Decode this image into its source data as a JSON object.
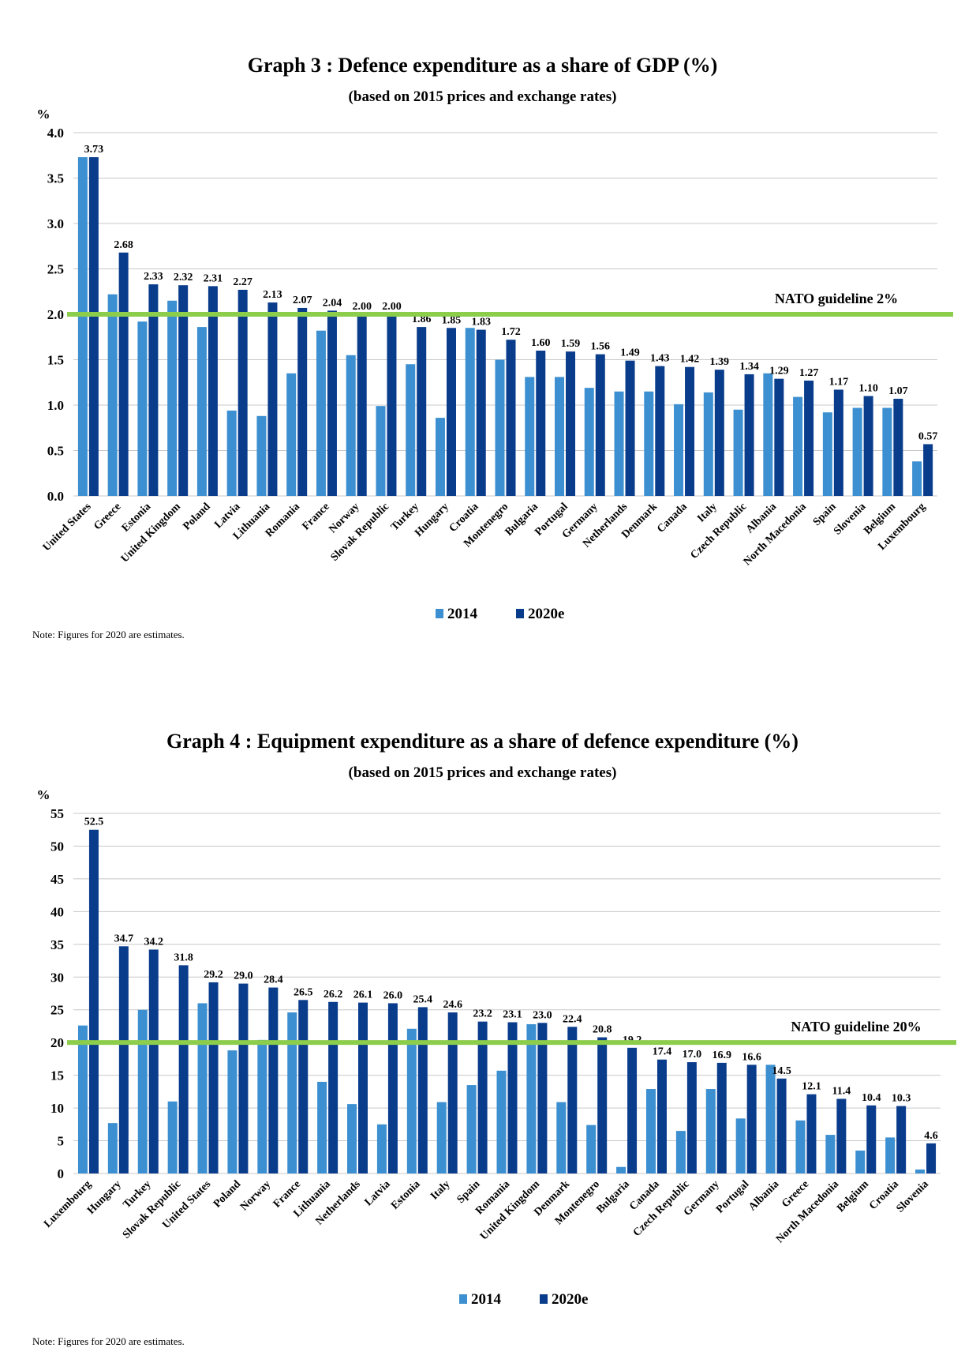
{
  "charts": [
    {
      "title": "Graph 3 : Defence expenditure as a share of GDP (%)",
      "subtitle": "(based on 2015 prices and exchange rates)",
      "note": "Note: Figures for 2020 are estimates.",
      "guideline_label": "NATO guideline 2%",
      "colors": {
        "2014": "#3c8fd0",
        "2020e": "#0a3c8c",
        "guideline": "#8ccd4b"
      }
    },
    {
      "title": "Graph 4 : Equipment expenditure as a share of defence expenditure (%)",
      "subtitle": "(based on 2015 prices and exchange rates)",
      "note": "Note: Figures for 2020 are estimates.",
      "guideline_label": "NATO guideline 20%",
      "colors": {
        "2014": "#3c8fd0",
        "2020e": "#0a3c8c",
        "guideline": "#8ccd4b"
      }
    }
  ],
  "chart_data": [
    {
      "type": "bar",
      "ylabel": "%",
      "ylim": [
        0,
        4.0
      ],
      "yticks": [
        "0.0",
        "0.5",
        "1.0",
        "1.5",
        "2.0",
        "2.5",
        "3.0",
        "3.5",
        "4.0"
      ],
      "grid": true,
      "legend_position": "bottom",
      "guideline": 2.0,
      "categories": [
        "United States",
        "Greece",
        "Estonia",
        "United Kingdom",
        "Poland",
        "Latvia",
        "Lithuania",
        "Romania",
        "France",
        "Norway",
        "Slovak Republic",
        "Turkey",
        "Hungary",
        "Croatia",
        "Montenegro",
        "Bulgaria",
        "Portugal",
        "Germany",
        "Netherlands",
        "Denmark",
        "Canada",
        "Italy",
        "Czech Republic",
        "Albania",
        "North Macedonia",
        "Spain",
        "Slovenia",
        "Belgium",
        "Luxembourg"
      ],
      "series": [
        {
          "name": "2014",
          "values": [
            3.73,
            2.22,
            1.92,
            2.15,
            1.86,
            0.94,
            0.88,
            1.35,
            1.82,
            1.55,
            0.99,
            1.45,
            0.86,
            1.85,
            1.5,
            1.31,
            1.31,
            1.19,
            1.15,
            1.15,
            1.01,
            1.14,
            0.95,
            1.35,
            1.09,
            0.92,
            0.97,
            0.97,
            0.38
          ]
        },
        {
          "name": "2020e",
          "values": [
            3.73,
            2.68,
            2.33,
            2.32,
            2.31,
            2.27,
            2.13,
            2.07,
            2.04,
            2.0,
            2.0,
            1.86,
            1.85,
            1.83,
            1.72,
            1.6,
            1.59,
            1.56,
            1.49,
            1.43,
            1.42,
            1.39,
            1.34,
            1.29,
            1.27,
            1.17,
            1.1,
            1.07,
            0.57
          ],
          "labels": [
            "3.73",
            "2.68",
            "2.33",
            "2.32",
            "2.31",
            "2.27",
            "2.13",
            "2.07",
            "2.04",
            "2.00",
            "2.00",
            "1.86",
            "1.85",
            "1.83",
            "1.72",
            "1.60",
            "1.59",
            "1.56",
            "1.49",
            "1.43",
            "1.42",
            "1.39",
            "1.34",
            "1.29",
            "1.27",
            "1.17",
            "1.10",
            "1.07",
            "0.57"
          ]
        }
      ]
    },
    {
      "type": "bar",
      "ylabel": "%",
      "ylim": [
        0,
        55
      ],
      "yticks": [
        "0",
        "5",
        "10",
        "15",
        "20",
        "25",
        "30",
        "35",
        "40",
        "45",
        "50",
        "55"
      ],
      "grid": true,
      "legend_position": "bottom",
      "guideline": 20,
      "categories": [
        "Luxembourg",
        "Hungary",
        "Turkey",
        "Slovak Republic",
        "United States",
        "Poland",
        "Norway",
        "France",
        "Lithuania",
        "Netherlands",
        "Latvia",
        "Estonia",
        "Italy",
        "Spain",
        "Romania",
        "United Kingdom",
        "Denmark",
        "Montenegro",
        "Bulgaria",
        "Canada",
        "Czech Republic",
        "Germany",
        "Portugal",
        "Albania",
        "Greece",
        "North Macedonia",
        "Belgium",
        "Croatia",
        "Slovenia"
      ],
      "series": [
        {
          "name": "2014",
          "values": [
            22.6,
            7.7,
            25.0,
            11.0,
            26.0,
            18.8,
            20.4,
            24.6,
            14.0,
            10.6,
            7.5,
            22.1,
            10.9,
            13.5,
            15.7,
            22.8,
            10.9,
            7.4,
            1.0,
            12.9,
            6.5,
            12.9,
            8.4,
            16.6,
            8.1,
            5.9,
            3.5,
            5.5,
            0.6
          ]
        },
        {
          "name": "2020e",
          "values": [
            52.5,
            34.7,
            34.2,
            31.8,
            29.2,
            29.0,
            28.4,
            26.5,
            26.2,
            26.1,
            26.0,
            25.4,
            24.6,
            23.2,
            23.1,
            23.0,
            22.4,
            20.8,
            19.2,
            17.4,
            17.0,
            16.9,
            16.6,
            14.5,
            12.1,
            11.4,
            10.4,
            10.3,
            4.6
          ],
          "labels": [
            "52.5",
            "34.7",
            "34.2",
            "31.8",
            "29.2",
            "29.0",
            "28.4",
            "26.5",
            "26.2",
            "26.1",
            "26.0",
            "25.4",
            "24.6",
            "23.2",
            "23.1",
            "23.0",
            "22.4",
            "20.8",
            "19.2",
            "17.4",
            "17.0",
            "16.9",
            "16.6",
            "14.5",
            "12.1",
            "11.4",
            "10.4",
            "10.3",
            "4.6"
          ]
        }
      ]
    }
  ]
}
